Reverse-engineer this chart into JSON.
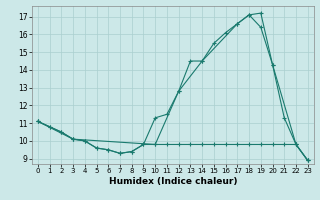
{
  "xlabel": "Humidex (Indice chaleur)",
  "bg_color": "#cce8e8",
  "line_color": "#1a7a6e",
  "grid_color": "#aacfcf",
  "xlim": [
    -0.5,
    23.5
  ],
  "ylim": [
    8.7,
    17.6
  ],
  "xticks": [
    0,
    1,
    2,
    3,
    4,
    5,
    6,
    7,
    8,
    9,
    10,
    11,
    12,
    13,
    14,
    15,
    16,
    17,
    18,
    19,
    20,
    21,
    22,
    23
  ],
  "yticks": [
    9,
    10,
    11,
    12,
    13,
    14,
    15,
    16,
    17
  ],
  "line1_x": [
    0,
    1,
    2,
    3,
    4,
    5,
    6,
    7,
    8,
    9,
    10,
    11,
    12,
    13,
    14,
    15,
    16,
    17,
    18,
    19,
    20,
    21,
    22,
    23
  ],
  "line1_y": [
    11.1,
    10.8,
    10.5,
    10.1,
    10.0,
    9.6,
    9.5,
    9.3,
    9.4,
    9.8,
    9.8,
    9.8,
    9.8,
    9.8,
    9.8,
    9.8,
    9.8,
    9.8,
    9.8,
    9.8,
    9.8,
    9.8,
    9.8,
    8.9
  ],
  "line2_x": [
    0,
    1,
    2,
    3,
    4,
    5,
    6,
    7,
    8,
    9,
    10,
    11,
    12,
    13,
    14,
    15,
    16,
    17,
    18,
    19,
    20,
    21,
    22,
    23
  ],
  "line2_y": [
    11.1,
    10.8,
    10.5,
    10.1,
    10.0,
    9.6,
    9.5,
    9.3,
    9.4,
    9.8,
    11.3,
    11.5,
    12.8,
    14.5,
    14.5,
    15.5,
    16.1,
    16.6,
    17.1,
    16.4,
    14.3,
    11.3,
    9.8,
    8.9
  ],
  "line3_x": [
    0,
    3,
    10,
    12,
    14,
    17,
    18,
    19,
    20,
    22,
    23
  ],
  "line3_y": [
    11.1,
    10.1,
    9.8,
    12.8,
    14.5,
    16.6,
    17.1,
    17.2,
    14.3,
    9.8,
    8.9
  ]
}
